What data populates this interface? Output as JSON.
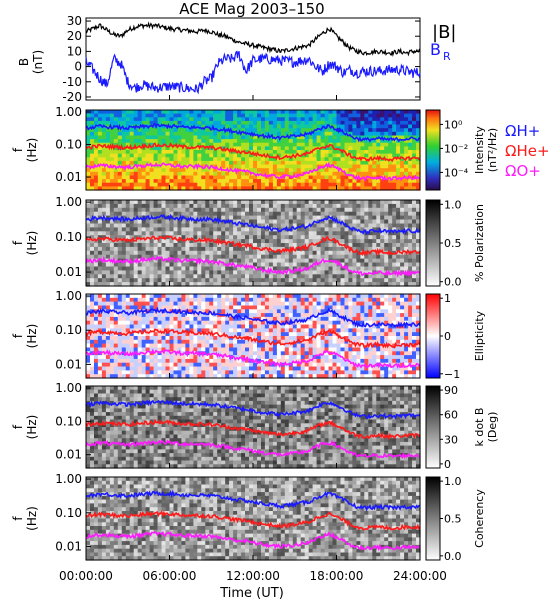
{
  "title": "ACE Mag 2003–150",
  "xlabel": "Time (UT)",
  "time_ticks": [
    "00:00:00",
    "06:00:00",
    "12:00:00",
    "18:00:00",
    "24:00:00"
  ],
  "freq_ticks": [
    "1.00",
    "0.10",
    "0.01"
  ],
  "freq_label": [
    "f",
    "(Hz)"
  ],
  "colors": {
    "B_total": "#000000",
    "B_R": "#1a1aff",
    "H": "#1a1aff",
    "He": "#ff1a1a",
    "O": "#ff1aff"
  },
  "chart_data": [
    {
      "type": "line",
      "ylabel": [
        "B",
        "(nT)"
      ],
      "yticks": [
        "30",
        "20",
        "10",
        "0",
        "-10",
        "-20"
      ],
      "ylim": [
        -22,
        32
      ],
      "xlim_hours": [
        0,
        24
      ],
      "legend": {
        "B_total": "|B|",
        "B_R": "B",
        "B_R_sub": "R"
      },
      "series": [
        {
          "name": "|B|",
          "color": "#000000",
          "x": [
            0,
            0.5,
            1,
            1.5,
            2,
            2.5,
            3,
            3.5,
            4,
            5,
            6,
            7,
            8,
            8.5,
            9,
            9.5,
            10,
            10.5,
            11,
            11.5,
            12,
            12.5,
            13,
            14,
            15,
            16,
            16.5,
            17,
            17.5,
            18,
            18.5,
            19,
            19.5,
            20,
            21,
            22,
            22.5,
            23,
            23.5,
            24
          ],
          "y": [
            23,
            25,
            27,
            24,
            21,
            20,
            24,
            26,
            27,
            27,
            25,
            24,
            23,
            24,
            23,
            21,
            20,
            18,
            16,
            15,
            14,
            13,
            12,
            10,
            12,
            14,
            18,
            22,
            25,
            20,
            16,
            12,
            10,
            9,
            10,
            9,
            10,
            9,
            10,
            10
          ]
        },
        {
          "name": "B_R",
          "color": "#1a1aff",
          "x": [
            0,
            0.5,
            1,
            1.5,
            2,
            2.5,
            3,
            3.5,
            4,
            5,
            6,
            7,
            8,
            8.5,
            9,
            9.5,
            10,
            10.5,
            11,
            11.5,
            12,
            12.5,
            13,
            14,
            15,
            16,
            16.5,
            17,
            17.5,
            18,
            18.5,
            19,
            19.5,
            20,
            21,
            22,
            22.5,
            23,
            23.5,
            24
          ],
          "y": [
            3,
            -2,
            -8,
            -12,
            5,
            2,
            -10,
            -14,
            -12,
            -14,
            -13,
            -14,
            -15,
            -10,
            -8,
            2,
            5,
            5,
            8,
            -3,
            4,
            5,
            5,
            4,
            3,
            5,
            0,
            -3,
            2,
            0,
            -4,
            -2,
            -4,
            -3,
            -3,
            -2,
            -2,
            -3,
            -4,
            -4
          ]
        }
      ]
    },
    {
      "type": "heatmap",
      "ylabel": [
        "f",
        "(Hz)"
      ],
      "colorbar": {
        "label": [
          "Intensity",
          "(nT²/Hz)"
        ],
        "ticks": [
          "10⁰",
          "10⁻²",
          "10⁻⁴"
        ],
        "scale": "log"
      },
      "gyro_lines": [
        "ΩH+",
        "ΩHe+",
        "ΩO+"
      ]
    },
    {
      "type": "heatmap",
      "ylabel": [
        "f",
        "(Hz)"
      ],
      "colorbar": {
        "label": [
          "% Polarization"
        ],
        "ticks": [
          "1.0",
          "0.5",
          "0.0"
        ]
      }
    },
    {
      "type": "heatmap",
      "ylabel": [
        "f",
        "(Hz)"
      ],
      "colorbar": {
        "label": [
          "Ellipticity"
        ],
        "ticks": [
          "1",
          "0",
          "−1"
        ]
      }
    },
    {
      "type": "heatmap",
      "ylabel": [
        "f",
        "(Hz)"
      ],
      "colorbar": {
        "label": [
          "k dot B",
          "(Deg)"
        ],
        "ticks": [
          "90",
          "60",
          "30",
          "0"
        ]
      }
    },
    {
      "type": "heatmap",
      "ylabel": [
        "f",
        "(Hz)"
      ],
      "colorbar": {
        "label": [
          "Coherency"
        ],
        "ticks": [
          "1.0",
          "0.5",
          "0.0"
        ]
      }
    }
  ],
  "gyrofrequency_lines": {
    "x_hours": [
      0,
      1,
      2,
      3,
      4,
      5,
      6,
      7,
      8,
      9,
      10,
      10.5,
      11,
      11.5,
      12,
      12.5,
      13,
      14,
      15,
      16,
      16.5,
      17,
      17.5,
      18,
      18.5,
      19,
      19.5,
      20,
      21,
      22,
      23,
      24
    ],
    "H_plus_hz": [
      0.32,
      0.36,
      0.34,
      0.32,
      0.35,
      0.38,
      0.37,
      0.34,
      0.33,
      0.32,
      0.28,
      0.26,
      0.24,
      0.23,
      0.21,
      0.19,
      0.18,
      0.16,
      0.18,
      0.21,
      0.27,
      0.33,
      0.37,
      0.3,
      0.24,
      0.18,
      0.15,
      0.14,
      0.15,
      0.14,
      0.15,
      0.15
    ],
    "He_plus_hz": [
      0.08,
      0.09,
      0.085,
      0.08,
      0.088,
      0.095,
      0.093,
      0.085,
      0.083,
      0.08,
      0.07,
      0.065,
      0.06,
      0.058,
      0.053,
      0.048,
      0.045,
      0.04,
      0.045,
      0.053,
      0.068,
      0.083,
      0.093,
      0.075,
      0.06,
      0.045,
      0.038,
      0.035,
      0.038,
      0.035,
      0.038,
      0.038
    ],
    "O_plus_hz": [
      0.02,
      0.0225,
      0.021,
      0.02,
      0.022,
      0.024,
      0.023,
      0.021,
      0.021,
      0.02,
      0.0175,
      0.016,
      0.015,
      0.0145,
      0.013,
      0.012,
      0.011,
      0.01,
      0.011,
      0.013,
      0.017,
      0.021,
      0.023,
      0.019,
      0.015,
      0.011,
      0.0095,
      0.009,
      0.0095,
      0.009,
      0.0095,
      0.0095
    ]
  }
}
